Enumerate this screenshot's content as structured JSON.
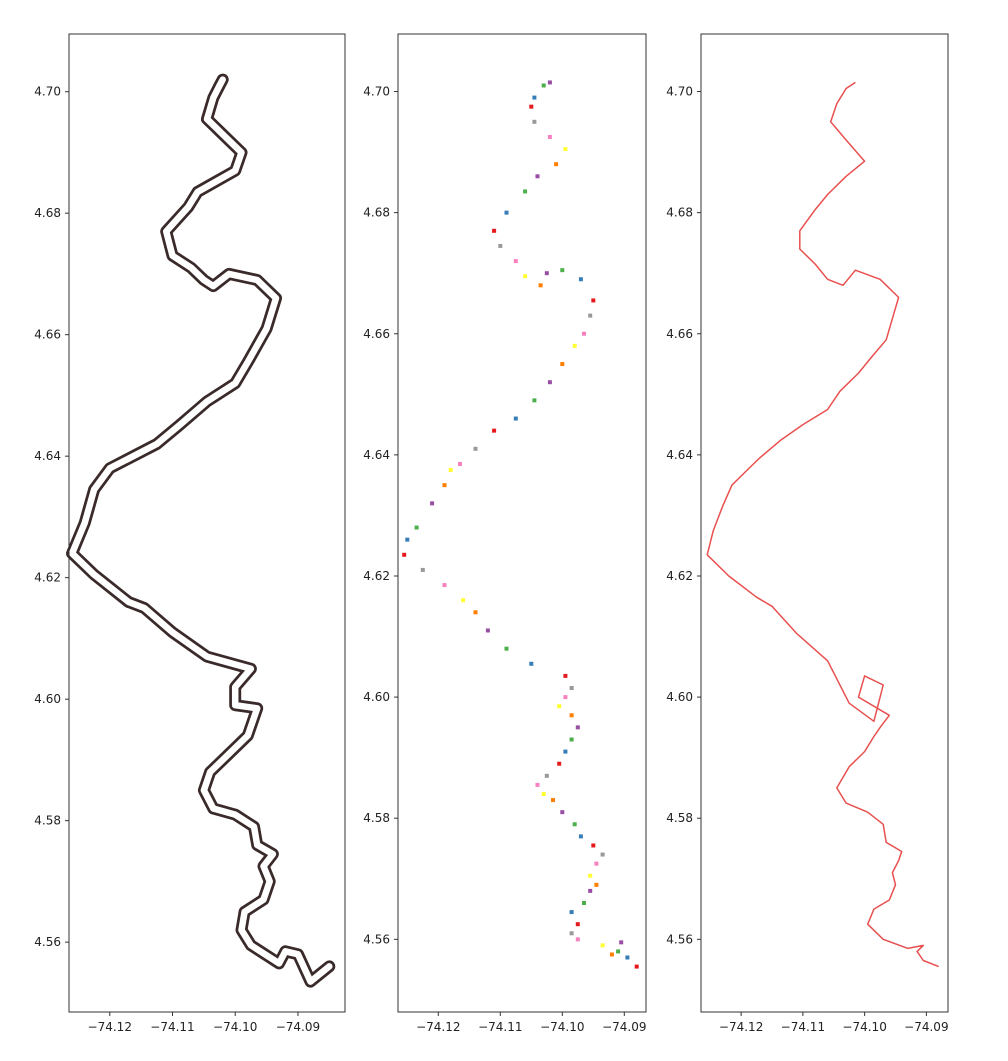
{
  "chart_data": [
    {
      "type": "line",
      "style": "outlined-buffer",
      "title": "",
      "xlabel": "",
      "ylabel": "",
      "xlim": [
        -74.1265,
        -74.0825
      ],
      "ylim": [
        4.5485,
        4.7095
      ],
      "xticks": [
        "-74.12",
        "-74.11",
        "-74.10",
        "-74.09"
      ],
      "yticks": [
        "4.56",
        "4.58",
        "4.60",
        "4.62",
        "4.64",
        "4.66",
        "4.68",
        "4.70"
      ],
      "grid": false,
      "colors": {
        "outline": "#3a2a2a",
        "fill": "#ffffff"
      },
      "series": [
        {
          "points": [
            [
              -74.085,
              4.556
            ],
            [
              -74.088,
              4.5535
            ],
            [
              -74.09,
              4.558
            ],
            [
              -74.092,
              4.5585
            ],
            [
              -74.093,
              4.5565
            ],
            [
              -74.0975,
              4.5595
            ],
            [
              -74.099,
              4.562
            ],
            [
              -74.0985,
              4.565
            ],
            [
              -74.0955,
              4.567
            ],
            [
              -74.0945,
              4.57
            ],
            [
              -74.0955,
              4.5725
            ],
            [
              -74.094,
              4.5745
            ],
            [
              -74.0965,
              4.576
            ],
            [
              -74.097,
              4.579
            ],
            [
              -74.1,
              4.581
            ],
            [
              -74.1035,
              4.582
            ],
            [
              -74.105,
              4.585
            ],
            [
              -74.104,
              4.588
            ],
            [
              -74.101,
              4.591
            ],
            [
              -74.098,
              4.594
            ],
            [
              -74.0965,
              4.5985
            ],
            [
              -74.1,
              4.599
            ],
            [
              -74.1,
              4.602
            ],
            [
              -74.0975,
              4.605
            ],
            [
              -74.1045,
              4.607
            ],
            [
              -74.11,
              4.611
            ],
            [
              -74.1145,
              4.615
            ],
            [
              -74.117,
              4.616
            ],
            [
              -74.1225,
              4.6205
            ],
            [
              -74.126,
              4.624
            ],
            [
              -74.124,
              4.629
            ],
            [
              -74.1225,
              4.6345
            ],
            [
              -74.12,
              4.638
            ],
            [
              -74.1125,
              4.642
            ],
            [
              -74.109,
              4.645
            ],
            [
              -74.1045,
              4.649
            ],
            [
              -74.1,
              4.652
            ],
            [
              -74.098,
              4.6555
            ],
            [
              -74.095,
              4.661
            ],
            [
              -74.0935,
              4.666
            ],
            [
              -74.0965,
              4.669
            ],
            [
              -74.101,
              4.67
            ],
            [
              -74.1035,
              4.668
            ],
            [
              -74.105,
              4.669
            ],
            [
              -74.107,
              4.671
            ],
            [
              -74.11,
              4.673
            ],
            [
              -74.111,
              4.677
            ],
            [
              -74.1075,
              4.681
            ],
            [
              -74.106,
              4.6835
            ],
            [
              -74.1,
              4.687
            ],
            [
              -74.099,
              4.69
            ],
            [
              -74.1015,
              4.6925
            ],
            [
              -74.1045,
              4.6955
            ],
            [
              -74.1035,
              4.699
            ],
            [
              -74.1025,
              4.701
            ],
            [
              -74.102,
              4.702
            ]
          ]
        }
      ]
    },
    {
      "type": "scatter",
      "title": "",
      "xlabel": "",
      "ylabel": "",
      "xlim": [
        -74.1265,
        -74.0865
      ],
      "ylim": [
        4.548,
        4.7095
      ],
      "xticks": [
        "-74.12",
        "-74.11",
        "-74.10",
        "-74.09"
      ],
      "yticks": [
        "4.56",
        "4.58",
        "4.60",
        "4.62",
        "4.64",
        "4.66",
        "4.68",
        "4.70"
      ],
      "grid": false,
      "marker_colors": [
        "#e41a1c",
        "#377eb8",
        "#4daf4a",
        "#984ea3",
        "#ff7f00",
        "#ffff33",
        "#f781bf",
        "#999999"
      ],
      "series": [
        {
          "points": [
            [
              -74.088,
              4.5555
            ],
            [
              -74.0895,
              4.557
            ],
            [
              -74.091,
              4.558
            ],
            [
              -74.0905,
              4.5595
            ],
            [
              -74.092,
              4.5575
            ],
            [
              -74.0935,
              4.559
            ],
            [
              -74.0975,
              4.56
            ],
            [
              -74.0985,
              4.561
            ],
            [
              -74.0975,
              4.5625
            ],
            [
              -74.0985,
              4.5645
            ],
            [
              -74.0965,
              4.566
            ],
            [
              -74.0955,
              4.568
            ],
            [
              -74.0945,
              4.569
            ],
            [
              -74.0955,
              4.5705
            ],
            [
              -74.0945,
              4.5725
            ],
            [
              -74.0935,
              4.574
            ],
            [
              -74.095,
              4.5755
            ],
            [
              -74.097,
              4.577
            ],
            [
              -74.098,
              4.579
            ],
            [
              -74.1,
              4.581
            ],
            [
              -74.1015,
              4.583
            ],
            [
              -74.103,
              4.584
            ],
            [
              -74.104,
              4.5855
            ],
            [
              -74.1025,
              4.587
            ],
            [
              -74.1005,
              4.589
            ],
            [
              -74.0995,
              4.591
            ],
            [
              -74.0985,
              4.593
            ],
            [
              -74.0975,
              4.595
            ],
            [
              -74.0985,
              4.597
            ],
            [
              -74.1005,
              4.5985
            ],
            [
              -74.0995,
              4.6
            ],
            [
              -74.0985,
              4.6015
            ],
            [
              -74.0995,
              4.6035
            ],
            [
              -74.105,
              4.6055
            ],
            [
              -74.109,
              4.608
            ],
            [
              -74.112,
              4.611
            ],
            [
              -74.114,
              4.614
            ],
            [
              -74.116,
              4.616
            ],
            [
              -74.119,
              4.6185
            ],
            [
              -74.1225,
              4.621
            ],
            [
              -74.1255,
              4.6235
            ],
            [
              -74.125,
              4.626
            ],
            [
              -74.1235,
              4.628
            ],
            [
              -74.121,
              4.632
            ],
            [
              -74.119,
              4.635
            ],
            [
              -74.118,
              4.6375
            ],
            [
              -74.1165,
              4.6385
            ],
            [
              -74.114,
              4.641
            ],
            [
              -74.111,
              4.644
            ],
            [
              -74.1075,
              4.646
            ],
            [
              -74.1045,
              4.649
            ],
            [
              -74.102,
              4.652
            ],
            [
              -74.1,
              4.655
            ],
            [
              -74.098,
              4.658
            ],
            [
              -74.0965,
              4.66
            ],
            [
              -74.0955,
              4.663
            ],
            [
              -74.095,
              4.6655
            ],
            [
              -74.097,
              4.669
            ],
            [
              -74.1,
              4.6705
            ],
            [
              -74.1025,
              4.67
            ],
            [
              -74.1035,
              4.668
            ],
            [
              -74.106,
              4.6695
            ],
            [
              -74.1075,
              4.672
            ],
            [
              -74.11,
              4.6745
            ],
            [
              -74.111,
              4.677
            ],
            [
              -74.109,
              4.68
            ],
            [
              -74.106,
              4.6835
            ],
            [
              -74.104,
              4.686
            ],
            [
              -74.101,
              4.688
            ],
            [
              -74.0995,
              4.6905
            ],
            [
              -74.102,
              4.6925
            ],
            [
              -74.1045,
              4.695
            ],
            [
              -74.105,
              4.6975
            ],
            [
              -74.1045,
              4.699
            ],
            [
              -74.103,
              4.701
            ],
            [
              -74.102,
              4.7015
            ]
          ]
        }
      ]
    },
    {
      "type": "line",
      "title": "",
      "xlabel": "",
      "ylabel": "",
      "xlim": [
        -74.1265,
        -74.0865
      ],
      "ylim": [
        4.548,
        4.7095
      ],
      "xticks": [
        "-74.12",
        "-74.11",
        "-74.10",
        "-74.09"
      ],
      "yticks": [
        "4.56",
        "4.58",
        "4.60",
        "4.62",
        "4.64",
        "4.66",
        "4.68",
        "4.70"
      ],
      "grid": false,
      "colors": {
        "line": "#e8504f"
      },
      "series": [
        {
          "points": [
            [
              -74.088,
              4.5555
            ],
            [
              -74.0905,
              4.5565
            ],
            [
              -74.0915,
              4.558
            ],
            [
              -74.0905,
              4.559
            ],
            [
              -74.093,
              4.5585
            ],
            [
              -74.097,
              4.56
            ],
            [
              -74.0995,
              4.5625
            ],
            [
              -74.0985,
              4.565
            ],
            [
              -74.096,
              4.5665
            ],
            [
              -74.095,
              4.569
            ],
            [
              -74.0955,
              4.571
            ],
            [
              -74.0945,
              4.573
            ],
            [
              -74.094,
              4.5745
            ],
            [
              -74.0965,
              4.576
            ],
            [
              -74.097,
              4.579
            ],
            [
              -74.0995,
              4.581
            ],
            [
              -74.103,
              4.5825
            ],
            [
              -74.1045,
              4.585
            ],
            [
              -74.1025,
              4.5885
            ],
            [
              -74.1,
              4.591
            ],
            [
              -74.0985,
              4.5935
            ],
            [
              -74.0975,
              4.595
            ],
            [
              -74.096,
              4.597
            ],
            [
              -74.101,
              4.6
            ],
            [
              -74.1,
              4.6035
            ],
            [
              -74.097,
              4.602
            ],
            [
              -74.0985,
              4.596
            ],
            [
              -74.1025,
              4.599
            ],
            [
              -74.106,
              4.606
            ],
            [
              -74.111,
              4.6105
            ],
            [
              -74.115,
              4.615
            ],
            [
              -74.1175,
              4.6165
            ],
            [
              -74.122,
              4.62
            ],
            [
              -74.1255,
              4.6235
            ],
            [
              -74.1245,
              4.6275
            ],
            [
              -74.123,
              4.6315
            ],
            [
              -74.1215,
              4.635
            ],
            [
              -74.1195,
              4.637
            ],
            [
              -74.117,
              4.6395
            ],
            [
              -74.1135,
              4.6425
            ],
            [
              -74.11,
              4.645
            ],
            [
              -74.106,
              4.6475
            ],
            [
              -74.104,
              4.6505
            ],
            [
              -74.101,
              4.6535
            ],
            [
              -74.099,
              4.656
            ],
            [
              -74.0965,
              4.659
            ],
            [
              -74.0955,
              4.6625
            ],
            [
              -74.0945,
              4.666
            ],
            [
              -74.0975,
              4.669
            ],
            [
              -74.1015,
              4.6705
            ],
            [
              -74.1035,
              4.668
            ],
            [
              -74.106,
              4.669
            ],
            [
              -74.108,
              4.6715
            ],
            [
              -74.1105,
              4.674
            ],
            [
              -74.1105,
              4.677
            ],
            [
              -74.108,
              4.6805
            ],
            [
              -74.106,
              4.683
            ],
            [
              -74.103,
              4.686
            ],
            [
              -74.1,
              4.6885
            ],
            [
              -74.103,
              4.692
            ],
            [
              -74.1055,
              4.695
            ],
            [
              -74.1045,
              4.698
            ],
            [
              -74.103,
              4.7005
            ],
            [
              -74.1015,
              4.7015
            ]
          ]
        }
      ]
    }
  ]
}
